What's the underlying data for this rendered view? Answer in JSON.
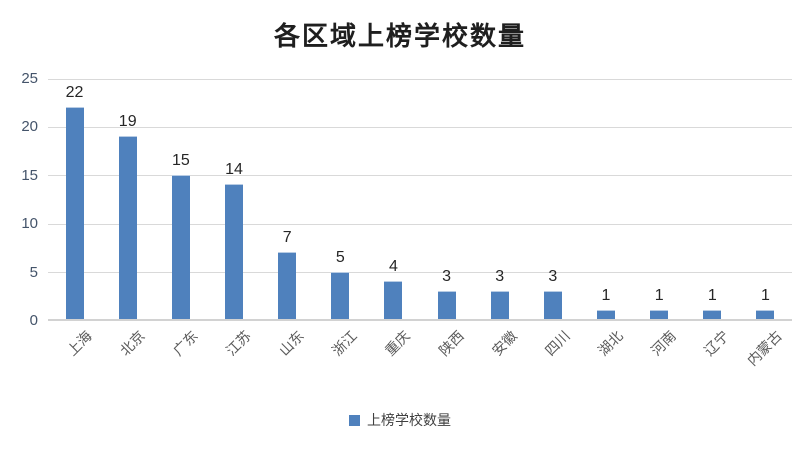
{
  "chart_data": {
    "type": "bar",
    "title": "各区域上榜学校数量",
    "categories": [
      "上海",
      "北京",
      "广东",
      "江苏",
      "山东",
      "浙江",
      "重庆",
      "陕西",
      "安徽",
      "四川",
      "湖北",
      "河南",
      "辽宁",
      "内蒙古"
    ],
    "series": [
      {
        "name": "上榜学校数量",
        "values": [
          22,
          19,
          15,
          14,
          7,
          5,
          4,
          3,
          3,
          3,
          1,
          1,
          1,
          1
        ]
      }
    ],
    "xlabel": "",
    "ylabel": "",
    "ylim": [
      0,
      25
    ],
    "yticks": [
      0,
      5,
      10,
      15,
      20,
      25
    ],
    "grid": true,
    "data_labels": true,
    "legend_position": "bottom",
    "xtick_rotation_deg": 45,
    "colors": {
      "background": "#ffffff",
      "bar": "#4f81bd",
      "bar_edge": "#b8cce4",
      "gridline": "#d9d9d9",
      "axis_line": "#d2d2d2",
      "title_text": "#1f1f1f",
      "data_label_text": "#262626",
      "ytick_text": "#44546a",
      "xtick_text": "#595959",
      "legend_text": "#404040"
    }
  }
}
